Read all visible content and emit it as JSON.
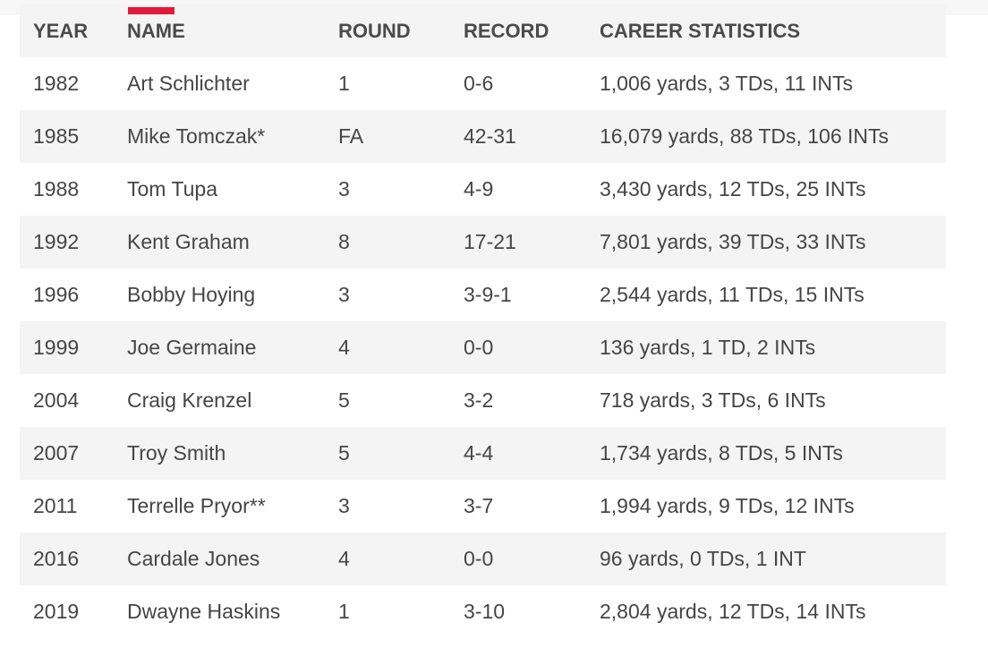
{
  "table": {
    "headers": {
      "year": "YEAR",
      "name": "NAME",
      "round": "ROUND",
      "record": "RECORD",
      "stats": "CAREER STATISTICS"
    },
    "rows": [
      {
        "year": "1982",
        "name": "Art Schlichter",
        "round": "1",
        "record": "0-6",
        "stats": "1,006 yards, 3 TDs, 11 INTs"
      },
      {
        "year": "1985",
        "name": "Mike Tomczak*",
        "round": "FA",
        "record": "42-31",
        "stats": "16,079 yards, 88 TDs, 106 INTs"
      },
      {
        "year": "1988",
        "name": "Tom Tupa",
        "round": "3",
        "record": "4-9",
        "stats": "3,430 yards, 12 TDs, 25 INTs"
      },
      {
        "year": "1992",
        "name": "Kent Graham",
        "round": "8",
        "record": "17-21",
        "stats": "7,801 yards, 39 TDs, 33 INTs"
      },
      {
        "year": "1996",
        "name": "Bobby Hoying",
        "round": "3",
        "record": "3-9-1",
        "stats": "2,544 yards, 11 TDs, 15 INTs"
      },
      {
        "year": "1999",
        "name": "Joe Germaine",
        "round": "4",
        "record": "0-0",
        "stats": "136 yards, 1 TD, 2 INTs"
      },
      {
        "year": "2004",
        "name": "Craig Krenzel",
        "round": "5",
        "record": "3-2",
        "stats": "718 yards, 3 TDs, 6 INTs"
      },
      {
        "year": "2007",
        "name": "Troy Smith",
        "round": "5",
        "record": "4-4",
        "stats": "1,734 yards, 8 TDs, 5 INTs"
      },
      {
        "year": "2011",
        "name": "Terrelle Pryor**",
        "round": "3",
        "record": "3-7",
        "stats": "1,994 yards, 9 TDs, 12 INTs"
      },
      {
        "year": "2016",
        "name": "Cardale Jones",
        "round": "4",
        "record": "0-0",
        "stats": "96 yards, 0 TDs, 1 INT"
      },
      {
        "year": "2019",
        "name": "Dwayne Haskins",
        "round": "1",
        "record": "3-10",
        "stats": "2,804 yards, 12 TDs, 14 INTs"
      }
    ]
  },
  "colors": {
    "accent": "#e31937",
    "stripe": "#f4f4f4",
    "text": "#454545"
  }
}
